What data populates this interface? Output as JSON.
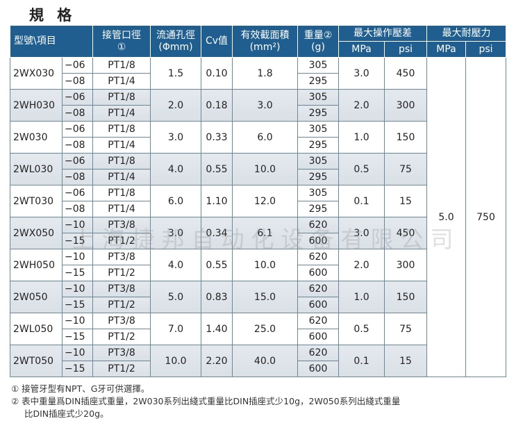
{
  "title": "規 格",
  "headers": {
    "model": "型號\\項目",
    "port": "接管口徑",
    "port_note": "①",
    "orifice": "流通孔徑",
    "orifice_unit": "(Φmm)",
    "cv": "Cv值",
    "area": "有效截面積",
    "area_unit": "(mm²)",
    "weight": "重量②",
    "weight_unit": "(g)",
    "op": "最大操作壓差",
    "op_mpa": "MPa",
    "op_psi": "psi",
    "proof": "最大耐壓力",
    "proof_mpa": "MPa",
    "proof_psi": "psi"
  },
  "proof": {
    "mpa": "5.0",
    "psi": "750"
  },
  "rows": [
    {
      "model": "2WX030",
      "subs": [
        "−06",
        "−08"
      ],
      "ports": [
        "PT1/8",
        "PT1/4"
      ],
      "orifice": "1.5",
      "cv": "0.10",
      "area": "1.8",
      "weights": [
        "305",
        "295"
      ],
      "mpa": "3.0",
      "psi": "450"
    },
    {
      "model": "2WH030",
      "subs": [
        "−06",
        "−08"
      ],
      "ports": [
        "PT1/8",
        "PT1/4"
      ],
      "orifice": "2.0",
      "cv": "0.18",
      "area": "3.0",
      "weights": [
        "305",
        "295"
      ],
      "mpa": "2.0",
      "psi": "300"
    },
    {
      "model": "2W030",
      "subs": [
        "−06",
        "−08"
      ],
      "ports": [
        "PT1/8",
        "PT1/4"
      ],
      "orifice": "3.0",
      "cv": "0.33",
      "area": "6.0",
      "weights": [
        "305",
        "295"
      ],
      "mpa": "1.0",
      "psi": "150"
    },
    {
      "model": "2WL030",
      "subs": [
        "−06",
        "−08"
      ],
      "ports": [
        "PT1/8",
        "PT1/4"
      ],
      "orifice": "4.0",
      "cv": "0.55",
      "area": "10.0",
      "weights": [
        "305",
        "295"
      ],
      "mpa": "0.5",
      "psi": "75"
    },
    {
      "model": "2WT030",
      "subs": [
        "−06",
        "−08"
      ],
      "ports": [
        "PT1/8",
        "PT1/4"
      ],
      "orifice": "6.0",
      "cv": "1.10",
      "area": "12.0",
      "weights": [
        "305",
        "295"
      ],
      "mpa": "0.1",
      "psi": "15"
    },
    {
      "model": "2WX050",
      "subs": [
        "−10",
        "−15"
      ],
      "ports": [
        "PT3/8",
        "PT1/2"
      ],
      "orifice": "3.0",
      "cv": "0.34",
      "area": "6.1",
      "weights": [
        "620",
        "600"
      ],
      "mpa": "3.0",
      "psi": "450"
    },
    {
      "model": "2WH050",
      "subs": [
        "−10",
        "−15"
      ],
      "ports": [
        "PT3/8",
        "PT1/2"
      ],
      "orifice": "4.0",
      "cv": "0.55",
      "area": "10.0",
      "weights": [
        "620",
        "600"
      ],
      "mpa": "2.0",
      "psi": "300"
    },
    {
      "model": "2W050",
      "subs": [
        "−10",
        "−15"
      ],
      "ports": [
        "PT3/8",
        "PT1/2"
      ],
      "orifice": "5.0",
      "cv": "0.83",
      "area": "15.0",
      "weights": [
        "620",
        "600"
      ],
      "mpa": "1.0",
      "psi": "150"
    },
    {
      "model": "2WL050",
      "subs": [
        "−10",
        "−15"
      ],
      "ports": [
        "PT3/8",
        "PT1/2"
      ],
      "orifice": "7.0",
      "cv": "1.40",
      "area": "25.0",
      "weights": [
        "620",
        "600"
      ],
      "mpa": "0.5",
      "psi": "75"
    },
    {
      "model": "2WT050",
      "subs": [
        "−10",
        "−15"
      ],
      "ports": [
        "PT3/8",
        "PT1/2"
      ],
      "orifice": "10.0",
      "cv": "2.20",
      "area": "40.0",
      "weights": [
        "620",
        "600"
      ],
      "mpa": "0.1",
      "psi": "15"
    }
  ],
  "notes": {
    "n1": "① 接管牙型有NPT、G牙可供選擇。",
    "n2": "② 表中重量爲DIN插座式重量，2W030系列出綫式重量比DIN插座式少10g，2W050系列出綫式重量",
    "n2b": "比DIN插座式少20g。"
  },
  "watermark": "上海捷邦自动化设备有限公司"
}
